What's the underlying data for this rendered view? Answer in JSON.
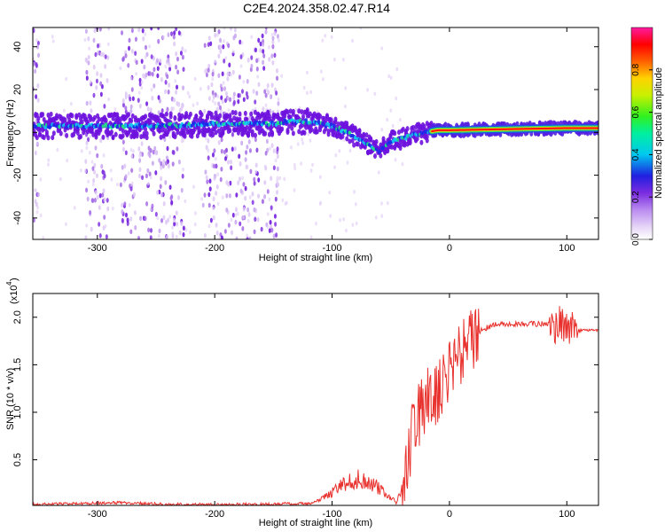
{
  "title": "C2E4.2024.358.02.47.R14",
  "chart_data": [
    {
      "type": "heatmap",
      "xlabel": "Height of straight line (km)",
      "ylabel": "Frequency (Hz)",
      "xlim": [
        -355,
        127
      ],
      "ylim": [
        -50,
        49
      ],
      "xticks": [
        -300,
        -200,
        -100,
        0,
        100
      ],
      "yticks": [
        -40,
        -20,
        0,
        20,
        40
      ],
      "colorbar": {
        "label": "Normalized spectral amplitude",
        "range": [
          0,
          1
        ],
        "ticks": [
          0.0,
          0.2,
          0.4,
          0.6,
          0.8
        ]
      },
      "ridge": {
        "x": [
          -355,
          -300,
          -250,
          -200,
          -150,
          -140,
          -120,
          -100,
          -80,
          -70,
          -60,
          -50,
          -40,
          -30,
          -20,
          -10,
          0,
          50,
          100,
          127
        ],
        "y": [
          3,
          3,
          3,
          4,
          4,
          5,
          5,
          3,
          -2,
          -5,
          -9,
          -4,
          -3,
          -1,
          0,
          1,
          1,
          1.5,
          2,
          2
        ],
        "dominant_from_x": -15
      },
      "noise_bands": [
        [
          -355,
          -350
        ],
        [
          -310,
          -290
        ],
        [
          -280,
          -225
        ],
        [
          -210,
          -145
        ]
      ]
    },
    {
      "type": "line",
      "xlabel": "Height of straight line (km)",
      "ylabel": "SNR (10 * v/v)",
      "y_multiplier_label": "(x10",
      "y_multiplier_exponent": "4",
      "xlim": [
        -355,
        127
      ],
      "ylim": [
        0.02,
        2.25
      ],
      "xticks": [
        -300,
        -200,
        -100,
        0,
        100
      ],
      "yticks": [
        0.5,
        1.0,
        1.5,
        2.0
      ],
      "series": [
        {
          "color": "#e8302c",
          "x": [
            -355,
            -320,
            -280,
            -240,
            -200,
            -160,
            -140,
            -120,
            -110,
            -100,
            -90,
            -80,
            -70,
            -60,
            -50,
            -45,
            -40,
            -35,
            -30,
            -25,
            -20,
            -15,
            -10,
            -5,
            0,
            10,
            20,
            30,
            40,
            60,
            80,
            90,
            95,
            100,
            105,
            110,
            127
          ],
          "y": [
            0.03,
            0.04,
            0.05,
            0.03,
            0.03,
            0.03,
            0.04,
            0.04,
            0.08,
            0.15,
            0.25,
            0.3,
            0.28,
            0.2,
            0.1,
            0.05,
            0.25,
            0.5,
            0.9,
            1.0,
            1.1,
            1.2,
            1.2,
            1.3,
            1.4,
            1.6,
            1.8,
            1.88,
            1.93,
            1.93,
            1.93,
            1.9,
            1.95,
            1.9,
            1.88,
            1.86,
            1.86
          ]
        }
      ]
    }
  ]
}
